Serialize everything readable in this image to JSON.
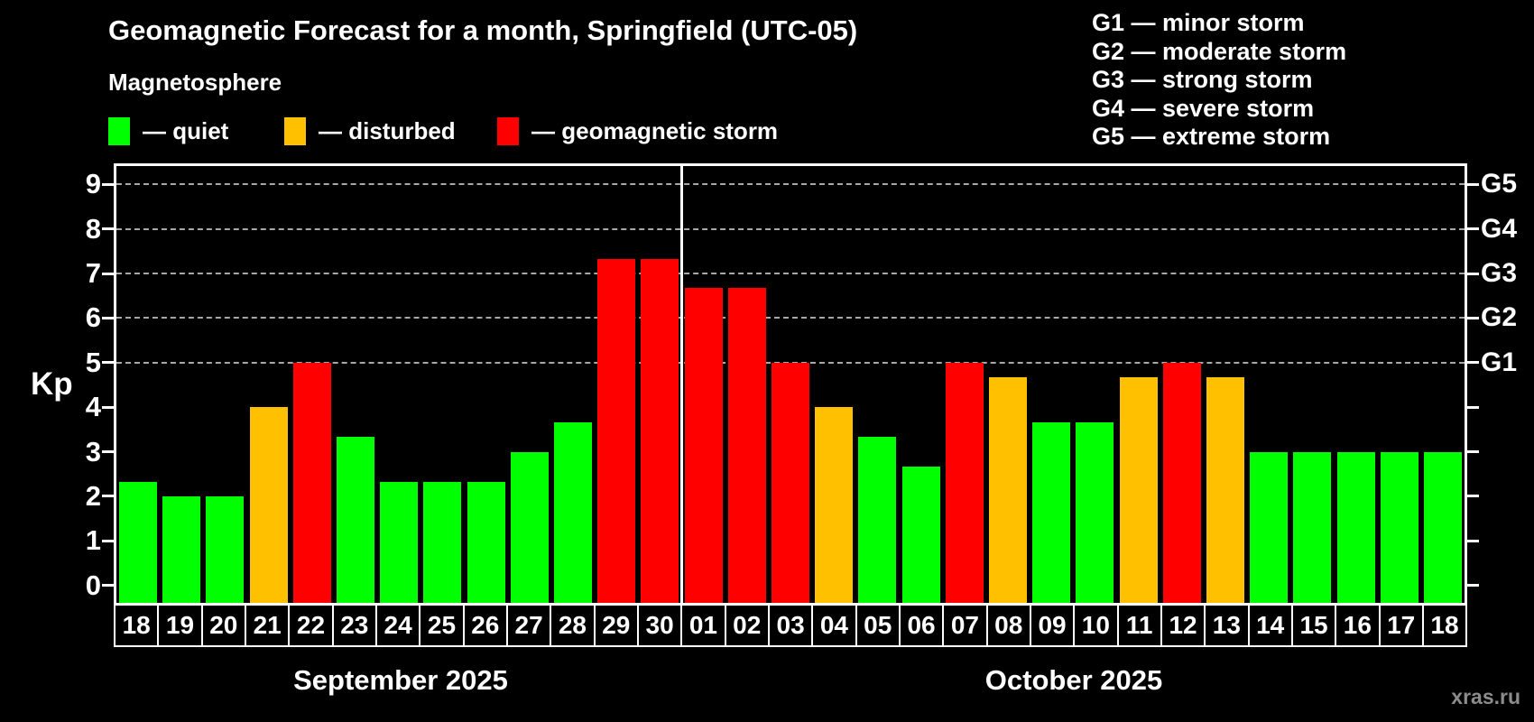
{
  "header": {
    "title": "Geomagnetic Forecast for a month, Springfield (UTC-05)",
    "legend_title": "Magnetosphere",
    "legend_items": [
      {
        "key": "quiet",
        "label": "— quiet",
        "color": "#00FF00"
      },
      {
        "key": "disturbed",
        "label": "— disturbed",
        "color": "#FFC000"
      },
      {
        "key": "storm",
        "label": "— geomagnetic storm",
        "color": "#FF0000"
      }
    ],
    "g_scale_legend": [
      "G1 — minor storm",
      "G2 — moderate storm",
      "G3 — strong storm",
      "G4 — severe storm",
      "G5 — extreme storm"
    ]
  },
  "chart_data": {
    "type": "bar",
    "ylabel": "Kp",
    "ylim": [
      -0.39,
      9.41
    ],
    "y_ticks": [
      0,
      1,
      2,
      3,
      4,
      5,
      6,
      7,
      8,
      9
    ],
    "grid_levels": [
      5,
      6,
      7,
      8,
      9
    ],
    "grid_on": true,
    "right_axis_labels": [
      {
        "kp": 5,
        "label": "G1"
      },
      {
        "kp": 6,
        "label": "G2"
      },
      {
        "kp": 7,
        "label": "G3"
      },
      {
        "kp": 8,
        "label": "G4"
      },
      {
        "kp": 9,
        "label": "G5"
      }
    ],
    "months": [
      {
        "label": "September 2025",
        "days": 13
      },
      {
        "label": "October 2025",
        "days": 18
      }
    ],
    "categories": [
      "18",
      "19",
      "20",
      "21",
      "22",
      "23",
      "24",
      "25",
      "26",
      "27",
      "28",
      "29",
      "30",
      "01",
      "02",
      "03",
      "04",
      "05",
      "06",
      "07",
      "08",
      "09",
      "10",
      "11",
      "12",
      "13",
      "14",
      "15",
      "16",
      "17",
      "18"
    ],
    "values": [
      2.33,
      2.0,
      2.0,
      4.0,
      5.0,
      3.33,
      2.33,
      2.33,
      2.33,
      3.0,
      3.67,
      7.33,
      7.33,
      6.67,
      6.67,
      5.0,
      4.0,
      3.33,
      2.67,
      5.0,
      4.67,
      3.67,
      3.67,
      4.67,
      5.0,
      4.67,
      3.0,
      3.0,
      3.0,
      3.0,
      3.0
    ],
    "statuses": [
      "quiet",
      "quiet",
      "quiet",
      "disturbed",
      "storm",
      "quiet",
      "quiet",
      "quiet",
      "quiet",
      "quiet",
      "quiet",
      "storm",
      "storm",
      "storm",
      "storm",
      "storm",
      "disturbed",
      "quiet",
      "quiet",
      "storm",
      "disturbed",
      "quiet",
      "quiet",
      "disturbed",
      "storm",
      "disturbed",
      "quiet",
      "quiet",
      "quiet",
      "quiet",
      "quiet"
    ],
    "colors": {
      "quiet": "#00FF00",
      "disturbed": "#FFC000",
      "storm": "#FF0000"
    }
  },
  "watermark": "xras.ru"
}
